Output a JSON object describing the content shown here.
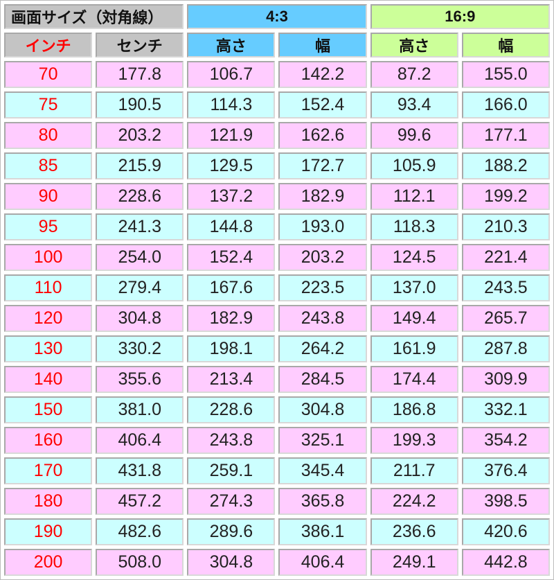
{
  "header": {
    "screen_size": "画面サイズ（対角線）",
    "ratio_4_3": "4:3",
    "ratio_16_9": "16:9",
    "inch": "インチ",
    "cm": "センチ",
    "height_4_3": "高さ",
    "width_4_3": "幅",
    "height_16_9": "高さ",
    "width_16_9": "幅"
  },
  "colors": {
    "gray": "#c4c4c4",
    "blue": "#66ccff",
    "green": "#ccff99",
    "pink": "#ffccff",
    "cyan": "#ccffff",
    "inch_text": "#ff0000"
  },
  "rows": [
    [
      "70",
      "177.8",
      "106.7",
      "142.2",
      "87.2",
      "155.0"
    ],
    [
      "75",
      "190.5",
      "114.3",
      "152.4",
      "93.4",
      "166.0"
    ],
    [
      "80",
      "203.2",
      "121.9",
      "162.6",
      "99.6",
      "177.1"
    ],
    [
      "85",
      "215.9",
      "129.5",
      "172.7",
      "105.9",
      "188.2"
    ],
    [
      "90",
      "228.6",
      "137.2",
      "182.9",
      "112.1",
      "199.2"
    ],
    [
      "95",
      "241.3",
      "144.8",
      "193.0",
      "118.3",
      "210.3"
    ],
    [
      "100",
      "254.0",
      "152.4",
      "203.2",
      "124.5",
      "221.4"
    ],
    [
      "110",
      "279.4",
      "167.6",
      "223.5",
      "137.0",
      "243.5"
    ],
    [
      "120",
      "304.8",
      "182.9",
      "243.8",
      "149.4",
      "265.7"
    ],
    [
      "130",
      "330.2",
      "198.1",
      "264.2",
      "161.9",
      "287.8"
    ],
    [
      "140",
      "355.6",
      "213.4",
      "284.5",
      "174.4",
      "309.9"
    ],
    [
      "150",
      "381.0",
      "228.6",
      "304.8",
      "186.8",
      "332.1"
    ],
    [
      "160",
      "406.4",
      "243.8",
      "325.1",
      "199.3",
      "354.2"
    ],
    [
      "170",
      "431.8",
      "259.1",
      "345.4",
      "211.7",
      "376.4"
    ],
    [
      "180",
      "457.2",
      "274.3",
      "365.8",
      "224.2",
      "398.5"
    ],
    [
      "190",
      "482.6",
      "289.6",
      "386.1",
      "236.6",
      "420.6"
    ],
    [
      "200",
      "508.0",
      "304.8",
      "406.4",
      "249.1",
      "442.8"
    ]
  ]
}
